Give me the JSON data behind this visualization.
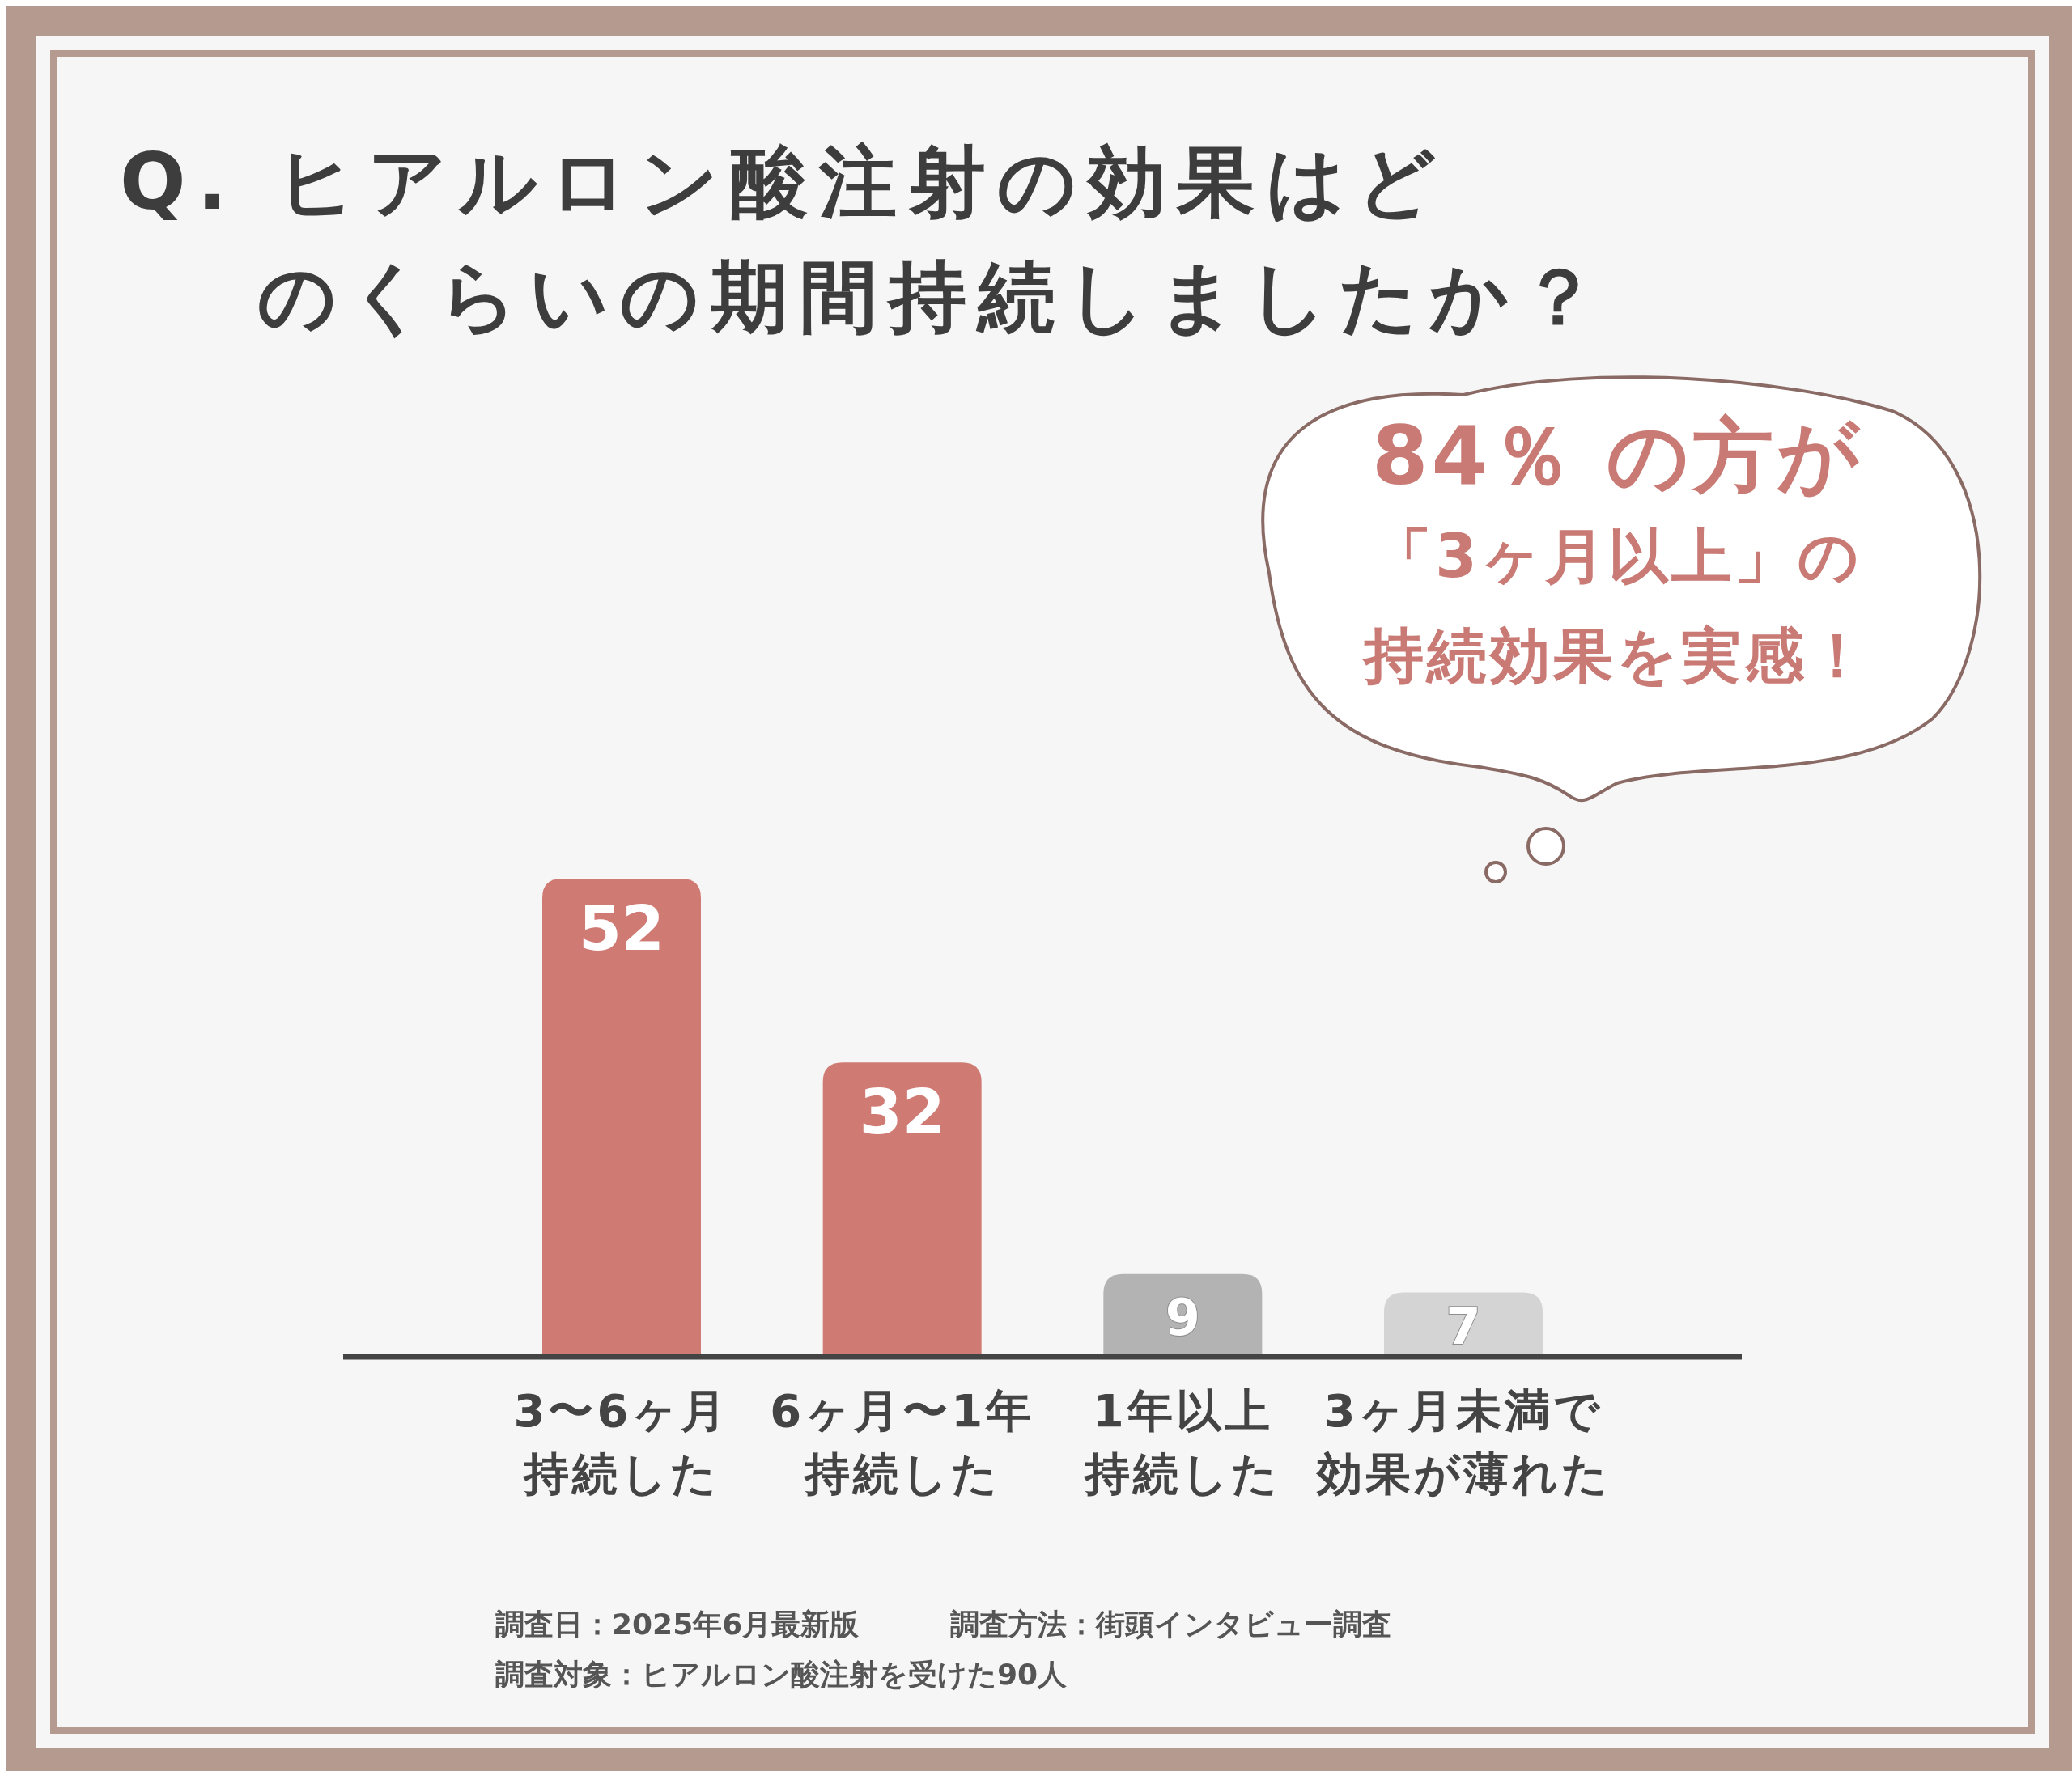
{
  "chart_data": {
    "type": "bar",
    "title": "Q. ヒアルロン酸注射の効果はどのくらいの期間持続しましたか？",
    "categories": [
      "3〜6ヶ月持続した",
      "6ヶ月〜1年持続した",
      "1年以上持続した",
      "3ヶ月未満で効果が薄れた"
    ],
    "values": [
      52,
      32,
      9,
      7
    ],
    "colors": [
      "#d07a74",
      "#d07a74",
      "#b3b3b3",
      "#d4d4d4"
    ],
    "data_labels": true,
    "annotations": [
      "84％ の方が",
      "「3ヶ月以上」の",
      "持続効果を実感！",
      "調査日：2025年6月最新版",
      "調査方法：街頭インタビュー調査",
      "調査対象：ヒアルロン酸注射を受けた90人"
    ]
  }
}
